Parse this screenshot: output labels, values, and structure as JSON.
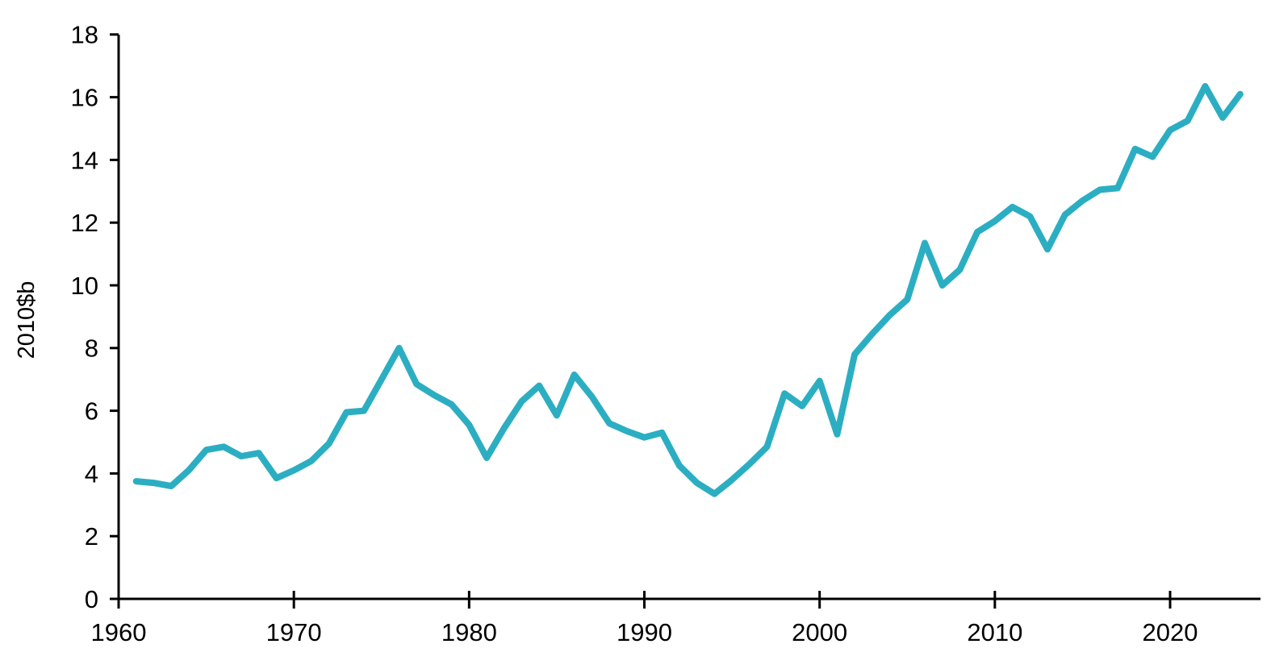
{
  "figure": {
    "title": "",
    "background_color": "#ffffff",
    "text_color": "#000000"
  },
  "chart_data": {
    "type": "line",
    "title": "",
    "xlabel": "",
    "ylabel": "2010$b",
    "grid": false,
    "legend_position": "none",
    "axis_color": "#000000",
    "xlim": [
      1960,
      2025.2
    ],
    "ylim": [
      0,
      18
    ],
    "x_ticks": [
      1960,
      1970,
      1980,
      1990,
      2000,
      2010,
      2020
    ],
    "y_ticks": [
      0,
      2,
      4,
      6,
      8,
      10,
      12,
      14,
      16,
      18
    ],
    "series": [
      {
        "name": "2010$b",
        "color": "#2CAEC2",
        "line_width": 8,
        "x": [
          1961,
          1962,
          1963,
          1964,
          1965,
          1966,
          1967,
          1968,
          1969,
          1970,
          1971,
          1972,
          1973,
          1974,
          1975,
          1976,
          1977,
          1978,
          1979,
          1980,
          1981,
          1982,
          1983,
          1984,
          1985,
          1986,
          1987,
          1988,
          1989,
          1990,
          1991,
          1992,
          1993,
          1994,
          1995,
          1996,
          1997,
          1998,
          1999,
          2000,
          2001,
          2002,
          2003,
          2004,
          2005,
          2006,
          2007,
          2008,
          2009,
          2010,
          2011,
          2012,
          2013,
          2014,
          2015,
          2016,
          2017,
          2018,
          2019,
          2020,
          2021,
          2022,
          2023,
          2024
        ],
        "values": [
          3.75,
          3.7,
          3.6,
          4.1,
          4.75,
          4.85,
          4.55,
          4.65,
          3.85,
          4.1,
          4.4,
          4.95,
          5.95,
          6.0,
          7.0,
          8.0,
          6.85,
          6.5,
          6.2,
          5.55,
          4.5,
          5.45,
          6.3,
          6.8,
          5.85,
          7.15,
          6.45,
          5.6,
          5.35,
          5.15,
          5.3,
          4.25,
          3.7,
          3.35,
          3.8,
          4.3,
          4.85,
          6.55,
          6.15,
          6.95,
          5.25,
          7.8,
          8.45,
          9.05,
          9.55,
          11.35,
          10.0,
          10.5,
          11.7,
          12.05,
          12.5,
          12.2,
          11.15,
          12.25,
          12.7,
          13.05,
          13.1,
          14.35,
          14.1,
          14.95,
          15.25,
          16.35,
          15.35,
          16.1
        ]
      }
    ]
  }
}
